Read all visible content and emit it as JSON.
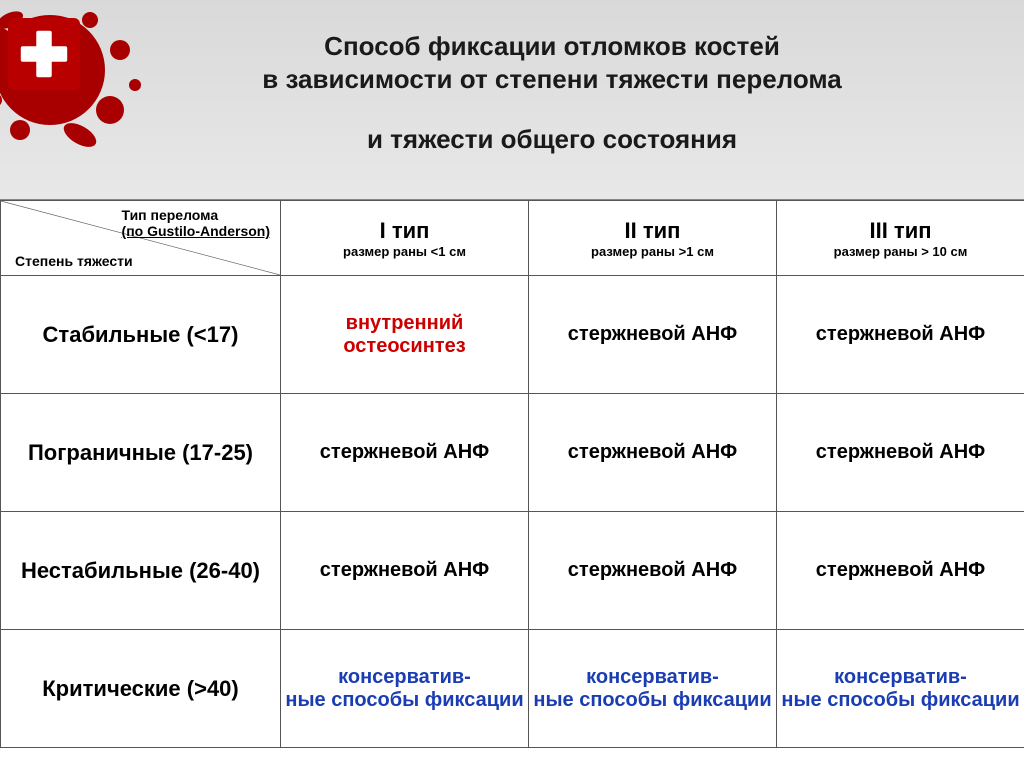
{
  "title": {
    "line1": "Способ фиксации отломков костей",
    "line2": "в зависимости от степени тяжести перелома",
    "line3": "и тяжести общего состояния"
  },
  "header": {
    "top_label_l1": "Тип перелома",
    "top_label_l2": "(по Gustilo-Anderson)",
    "left_label": "Степень тяжести",
    "cols": [
      {
        "type": "I  тип",
        "sub": "размер раны <1 см"
      },
      {
        "type": "II тип",
        "sub": "размер раны >1 см"
      },
      {
        "type": "III тип",
        "sub": "размер раны > 10 см"
      }
    ]
  },
  "rows": [
    {
      "label": "Стабильные (<17)",
      "cells": [
        {
          "text": "внутренний остеосинтез",
          "color": "c-red"
        },
        {
          "text": "стержневой АНФ",
          "color": "c-black"
        },
        {
          "text": "стержневой АНФ",
          "color": "c-black"
        }
      ]
    },
    {
      "label": "Пограничные (17-25)",
      "cells": [
        {
          "text": "стержневой АНФ",
          "color": "c-black"
        },
        {
          "text": "стержневой АНФ",
          "color": "c-black"
        },
        {
          "text": "стержневой АНФ",
          "color": "c-black"
        }
      ]
    },
    {
      "label": "Нестабильные (26-40)",
      "cells": [
        {
          "text": "стержневой АНФ",
          "color": "c-black"
        },
        {
          "text": "стержневой АНФ",
          "color": "c-black"
        },
        {
          "text": "стержневой АНФ",
          "color": "c-black"
        }
      ]
    },
    {
      "label": "Критические (>40)",
      "cells": [
        {
          "text": "консерватив-\nные способы фиксации",
          "color": "c-blue"
        },
        {
          "text": "консерватив-\nные способы фиксации",
          "color": "c-blue"
        },
        {
          "text": "консерватив-\nные способы фиксации",
          "color": "c-blue"
        }
      ]
    }
  ],
  "colors": {
    "band_top": "#d9d9d9",
    "blood": "#a80000",
    "cross_bg": "#b80000",
    "cross_fg": "#ffffff",
    "border": "#555555",
    "red_text": "#cc0000",
    "blue_text": "#1a3db3"
  }
}
